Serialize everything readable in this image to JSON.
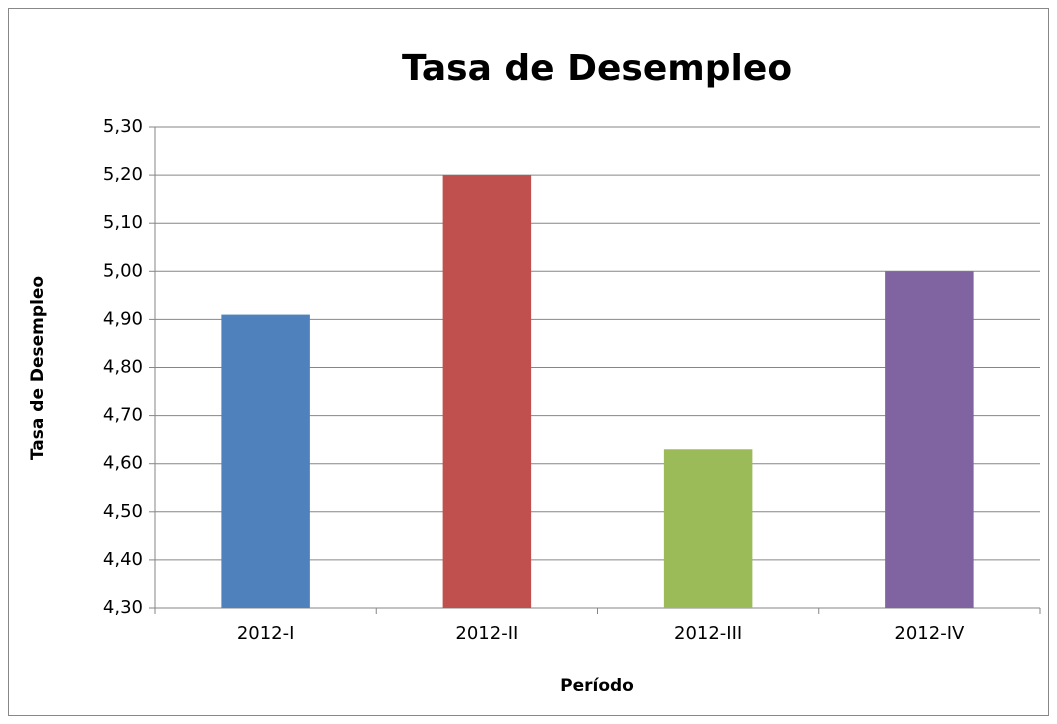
{
  "chart_data": {
    "type": "bar",
    "title": "Tasa de Desempleo",
    "x_label": "Período",
    "y_label": "Tasa de Desempleo",
    "categories": [
      "2012-I",
      "2012-II",
      "2012-III",
      "2012-IV"
    ],
    "values": [
      4.91,
      5.2,
      4.63,
      5.0
    ],
    "colors": [
      "#4f81bd",
      "#c0504d",
      "#9bbb59",
      "#8064a2"
    ],
    "ylim": [
      4.3,
      5.3
    ],
    "yticks": [
      {
        "value": 4.3,
        "label": "4,30"
      },
      {
        "value": 4.4,
        "label": "4,40"
      },
      {
        "value": 4.5,
        "label": "4,50"
      },
      {
        "value": 4.6,
        "label": "4,60"
      },
      {
        "value": 4.7,
        "label": "4,70"
      },
      {
        "value": 4.8,
        "label": "4,80"
      },
      {
        "value": 4.9,
        "label": "4,90"
      },
      {
        "value": 5.0,
        "label": "5,00"
      },
      {
        "value": 5.1,
        "label": "5,10"
      },
      {
        "value": 5.2,
        "label": "5,20"
      },
      {
        "value": 5.3,
        "label": "5,30"
      }
    ],
    "grid": true
  }
}
